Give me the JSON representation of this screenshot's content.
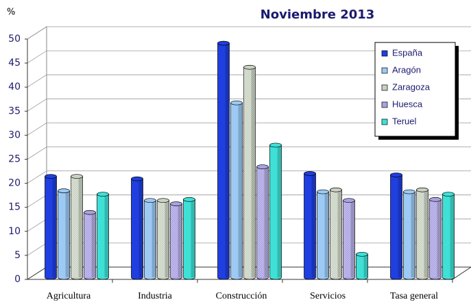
{
  "chart_data": {
    "type": "bar3d",
    "title": "Noviembre 2013",
    "y_label": "%",
    "categories": [
      "Agricultura",
      "Industria",
      "Construcción",
      "Servicios",
      "Tasa general"
    ],
    "series": [
      {
        "name": "España",
        "color": "#1f3fe0",
        "values": [
          21,
          20.5,
          48.7,
          21.6,
          21.3
        ]
      },
      {
        "name": "Aragón",
        "color": "#9ccaf4",
        "values": [
          18,
          16,
          36.3,
          17.8,
          17.8
        ]
      },
      {
        "name": "Zaragoza",
        "color": "#c9d2c2",
        "values": [
          21,
          16,
          43.7,
          18.2,
          18.2
        ]
      },
      {
        "name": "Huesca",
        "color": "#aaa2e2",
        "values": [
          13.5,
          15.3,
          23,
          16,
          16.2
        ]
      },
      {
        "name": "Teruel",
        "color": "#3fe0d6",
        "values": [
          17.3,
          16.2,
          27.5,
          4.8,
          17.3
        ]
      }
    ],
    "ylim": [
      0,
      50
    ],
    "yticks": [
      0,
      5,
      10,
      15,
      20,
      25,
      30,
      35,
      40,
      45,
      50
    ],
    "grid": true,
    "legend": "upper right"
  }
}
